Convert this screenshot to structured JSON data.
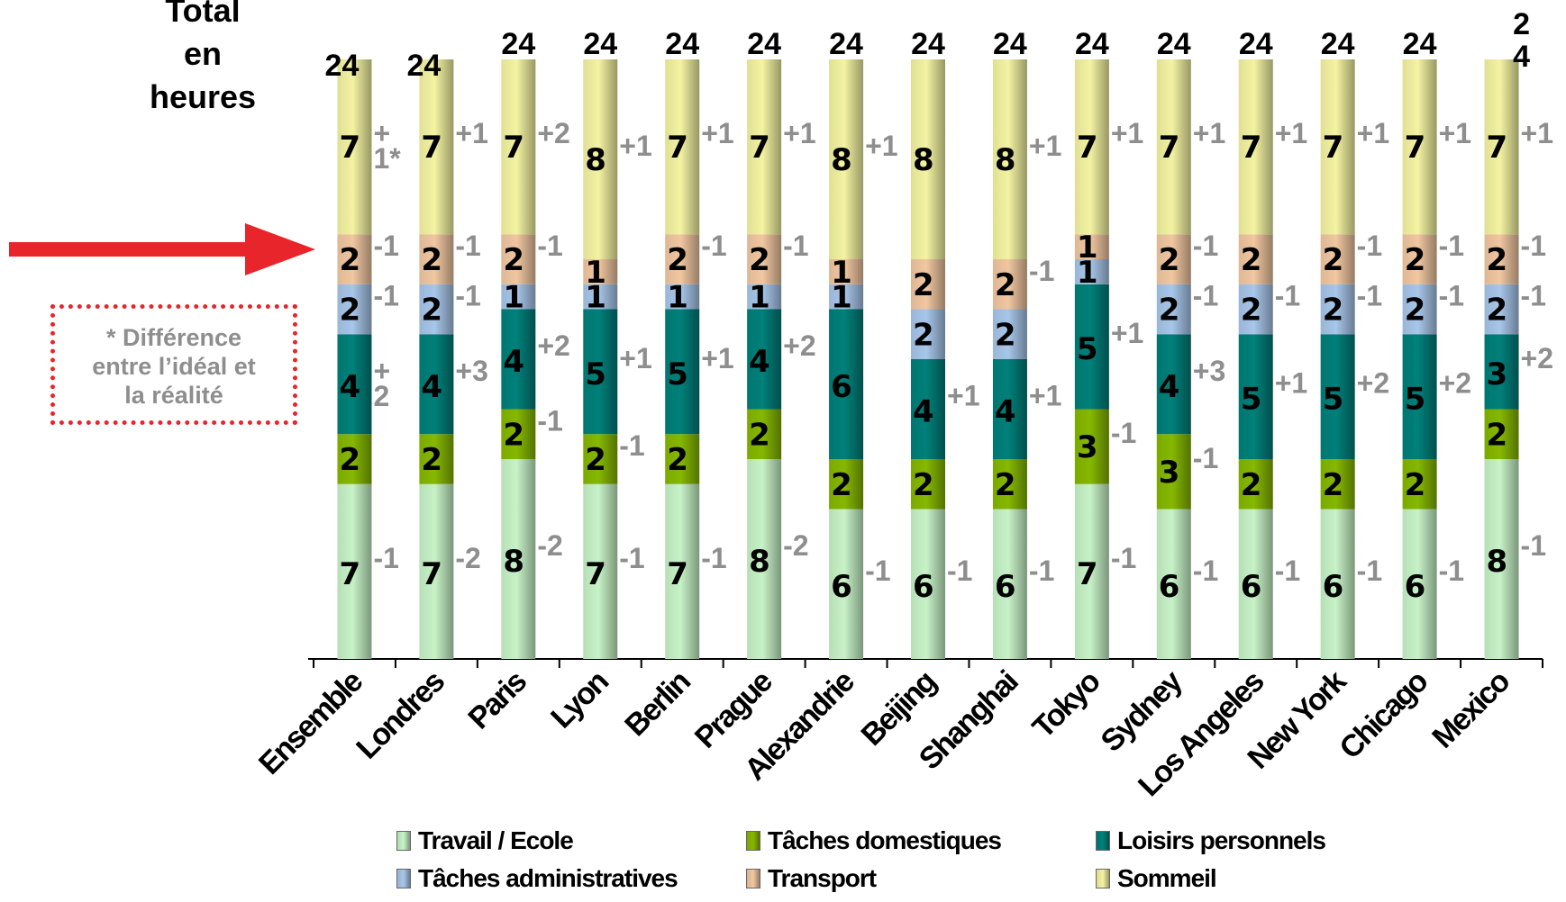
{
  "y_title": [
    "Total",
    "en",
    "heures"
  ],
  "note": [
    "* Différence",
    "entre l’idéal et",
    "la réalité"
  ],
  "chart_data": {
    "type": "bar",
    "stacked": true,
    "categories": [
      "Ensemble",
      "Londres",
      "Paris",
      "Lyon",
      "Berlin",
      "Prague",
      "Alexandrie",
      "Beijing",
      "Shanghai",
      "Tokyo",
      "Sydney",
      "Los Angeles",
      "New York",
      "Chicago",
      "Mexico"
    ],
    "totals": [
      "24",
      "24",
      "24",
      "24",
      "24",
      "24",
      "24",
      "24",
      "24",
      "24",
      "24",
      "24",
      "24",
      "24",
      "2\n4"
    ],
    "ylim": [
      0,
      24
    ],
    "series": [
      {
        "name": "Travail / Ecole",
        "color": "#c7f2c7",
        "values": [
          7,
          7,
          8,
          7,
          7,
          8,
          6,
          6,
          6,
          7,
          6,
          6,
          6,
          6,
          8
        ],
        "diffs": [
          "-1",
          "-2",
          "-2",
          "-1",
          "-1",
          "-2",
          "-1",
          "-1",
          "-1",
          "-1",
          "-1",
          "-1",
          "-1",
          "-1",
          "-1"
        ]
      },
      {
        "name": "Tâches domestiques",
        "color": "#86b800",
        "values": [
          2,
          2,
          2,
          2,
          2,
          2,
          2,
          2,
          2,
          3,
          3,
          2,
          2,
          2,
          2
        ],
        "diffs": [
          "",
          "",
          "-1",
          "-1",
          "",
          "",
          "",
          "",
          "",
          "-1",
          "-1",
          "",
          "",
          "",
          ""
        ]
      },
      {
        "name": "Loisirs personnels",
        "color": "#00807a",
        "values": [
          4,
          4,
          4,
          5,
          5,
          4,
          6,
          4,
          4,
          5,
          4,
          5,
          5,
          5,
          3
        ],
        "diffs": [
          "+\n2",
          "+3",
          "+2",
          "+1",
          "+1",
          "+2",
          "",
          "+1",
          "+1",
          "+1",
          "+3",
          "+1",
          "+2",
          "+2",
          "+2"
        ]
      },
      {
        "name": "Tâches administratives",
        "color": "#a7c6ea",
        "values": [
          2,
          2,
          1,
          1,
          1,
          1,
          1,
          2,
          2,
          1,
          2,
          2,
          2,
          2,
          2
        ],
        "diffs": [
          "-1",
          "-1",
          "",
          "",
          "",
          "",
          "",
          "",
          "",
          "",
          "-1",
          "-1",
          "-1",
          "-1",
          "-1"
        ]
      },
      {
        "name": "Transport",
        "color": "#f1c7a1",
        "values": [
          2,
          2,
          2,
          1,
          2,
          2,
          1,
          2,
          2,
          1,
          2,
          2,
          2,
          2,
          2
        ],
        "diffs": [
          "-1",
          "-1",
          "-1",
          "",
          "-1",
          "-1",
          "",
          "",
          "-1",
          "",
          "-1",
          "",
          "-1",
          "-1",
          "-1"
        ]
      },
      {
        "name": "Sommeil",
        "color": "#f4f3a2",
        "values": [
          7,
          7,
          7,
          8,
          7,
          7,
          8,
          8,
          8,
          7,
          7,
          7,
          7,
          7,
          7
        ],
        "diffs": [
          "+\n1*",
          "+1",
          "+2",
          "+1",
          "+1",
          "+1",
          "+1",
          "",
          "+1",
          "+1",
          "+1",
          "+1",
          "+1",
          "+1",
          "+1"
        ]
      }
    ],
    "legend": {
      "position": "bottom"
    }
  }
}
